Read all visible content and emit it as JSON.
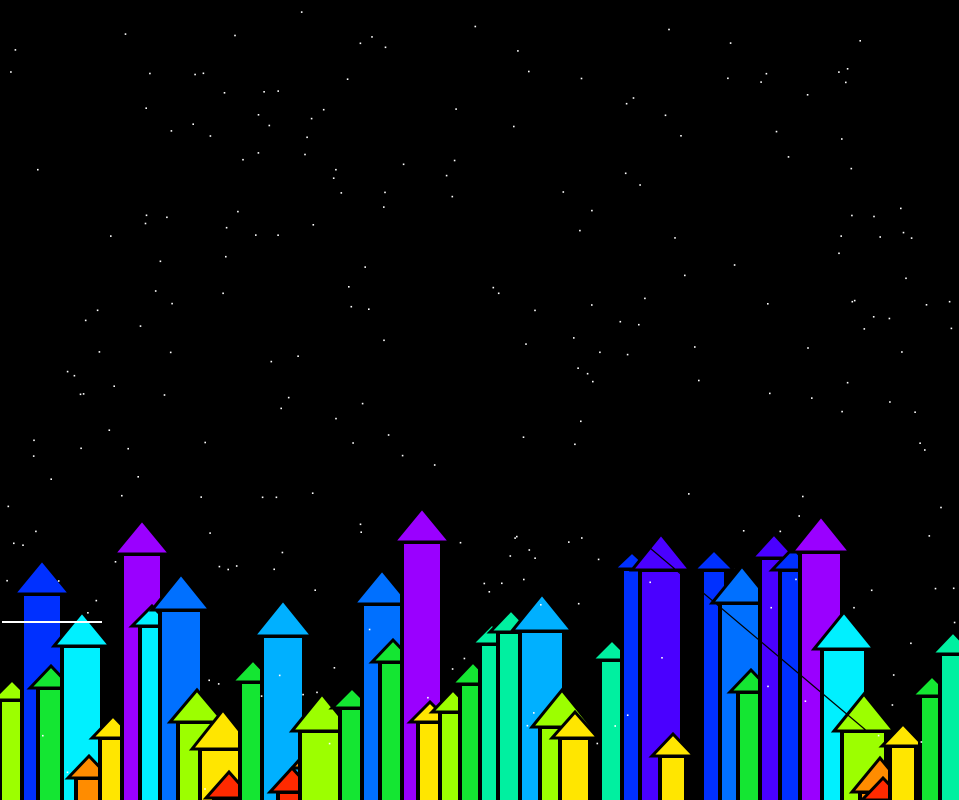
{
  "scene": {
    "background": "#000000",
    "star_color": "#ffffff",
    "outline_color": "#000000",
    "star_count": 260
  },
  "palette": {
    "red": "#ff2a00",
    "orange": "#ff8c00",
    "yellow": "#ffe600",
    "lime": "#9cff00",
    "green": "#14e632",
    "spring": "#00f0a0",
    "cyan": "#00f0ff",
    "sky": "#00b0ff",
    "azure": "#0070ff",
    "blue": "#0030ff",
    "indigo": "#4a00ff",
    "violet": "#9a00ff"
  },
  "arrows": [
    {
      "c": "lime"
    },
    {
      "c": "blue"
    },
    {
      "c": "green"
    },
    {
      "c": "cyan"
    },
    {
      "c": "orange"
    },
    {
      "c": "yellow"
    },
    {
      "c": "violet"
    },
    {
      "c": "cyan"
    },
    {
      "c": "azure"
    },
    {
      "c": "lime"
    },
    {
      "c": "yellow"
    },
    {
      "c": "red"
    },
    {
      "c": "green"
    },
    {
      "c": "sky"
    },
    {
      "c": "red"
    },
    {
      "c": "orange"
    },
    {
      "c": "lime"
    },
    {
      "c": "green"
    },
    {
      "c": "azure"
    },
    {
      "c": "green"
    },
    {
      "c": "violet"
    },
    {
      "c": "yellow"
    },
    {
      "c": "lime"
    },
    {
      "c": "green"
    },
    {
      "c": "spring"
    },
    {
      "c": "spring"
    },
    {
      "c": "sky"
    },
    {
      "c": "lime"
    },
    {
      "c": "yellow"
    },
    {
      "c": "spring"
    },
    {
      "c": "blue"
    },
    {
      "c": "indigo"
    },
    {
      "c": "yellow"
    },
    {
      "c": "blue"
    },
    {
      "c": "azure"
    },
    {
      "c": "green"
    },
    {
      "c": "indigo"
    },
    {
      "c": "blue"
    },
    {
      "c": "violet"
    },
    {
      "c": "cyan"
    },
    {
      "c": "lime"
    },
    {
      "c": "orange"
    },
    {
      "c": "red"
    },
    {
      "c": "yellow"
    },
    {
      "c": "green"
    },
    {
      "c": "spring"
    }
  ]
}
